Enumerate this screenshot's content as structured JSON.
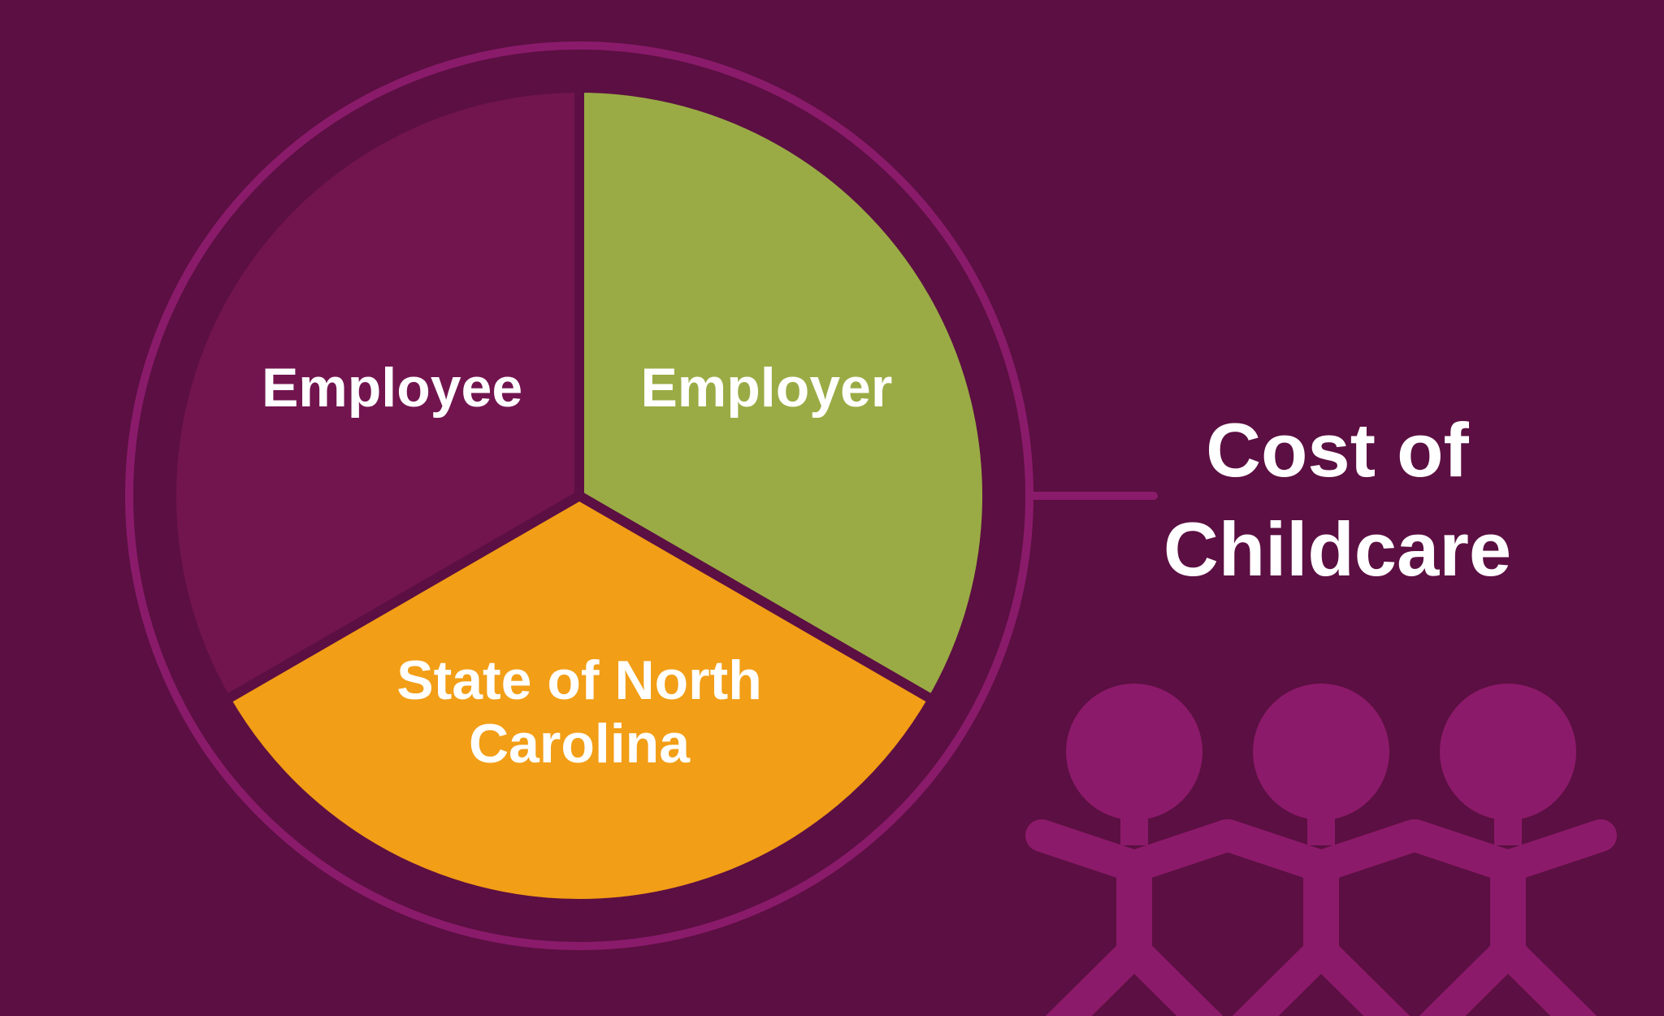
{
  "chart_data": {
    "type": "pie",
    "title": "Cost of Childcare",
    "categories": [
      "Employer",
      "State of North Carolina",
      "Employee"
    ],
    "values": [
      33.3,
      33.3,
      33.3
    ],
    "colors": [
      "#9aab45",
      "#f29e16",
      "#72154f"
    ]
  }
}
